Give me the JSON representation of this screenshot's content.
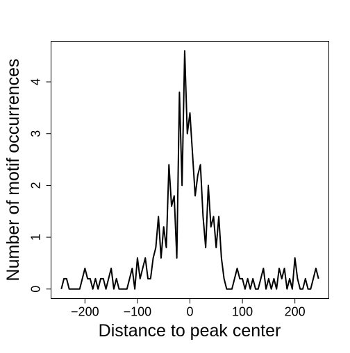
{
  "chart_data": {
    "type": "line",
    "xlabel": "Distance to peak center",
    "ylabel": "Number of motif occurrences",
    "color": "#000000",
    "x": [
      -245,
      -240,
      -235,
      -230,
      -225,
      -220,
      -215,
      -210,
      -205,
      -200,
      -195,
      -190,
      -185,
      -180,
      -175,
      -170,
      -165,
      -160,
      -155,
      -150,
      -145,
      -140,
      -135,
      -130,
      -125,
      -120,
      -115,
      -110,
      -105,
      -100,
      -95,
      -90,
      -85,
      -80,
      -75,
      -70,
      -65,
      -60,
      -55,
      -50,
      -45,
      -40,
      -35,
      -30,
      -25,
      -20,
      -15,
      -10,
      -5,
      0,
      5,
      10,
      15,
      20,
      25,
      30,
      35,
      40,
      45,
      50,
      55,
      60,
      65,
      70,
      75,
      80,
      85,
      90,
      95,
      100,
      105,
      110,
      115,
      120,
      125,
      130,
      135,
      140,
      145,
      150,
      155,
      160,
      165,
      170,
      175,
      180,
      185,
      190,
      195,
      200,
      205,
      210,
      215,
      220,
      225,
      230,
      235,
      240,
      245
    ],
    "values": [
      0,
      0.2,
      0.2,
      0,
      0,
      0,
      0,
      0,
      0.2,
      0.4,
      0.2,
      0.2,
      0,
      0.2,
      0,
      0.2,
      0.2,
      0,
      0.2,
      0.4,
      0,
      0.2,
      0,
      0,
      0,
      0,
      0.2,
      0.4,
      0,
      0.6,
      0.2,
      0.4,
      0.6,
      0.2,
      0.2,
      0.6,
      0.8,
      1.4,
      0.6,
      1.2,
      0.8,
      2.4,
      1.6,
      1.8,
      0.6,
      3.8,
      2.0,
      4.6,
      3.0,
      3.4,
      2.6,
      1.8,
      2.2,
      2.4,
      1.4,
      0.8,
      2.0,
      1.2,
      1.4,
      0.8,
      1.4,
      0.6,
      0.2,
      0,
      0,
      0,
      0.2,
      0.4,
      0.2,
      0.2,
      0,
      0.2,
      0,
      0.2,
      0,
      0,
      0.2,
      0.4,
      0,
      0.2,
      0,
      0.2,
      0,
      0.4,
      0.2,
      0.4,
      0,
      0.2,
      0,
      0.6,
      0.2,
      0,
      0,
      0.2,
      0,
      0,
      0.2,
      0.4,
      0.2
    ],
    "xlim": [
      -264.6,
      264.6
    ],
    "ylim": [
      -0.184,
      4.784
    ],
    "xticks": [
      {
        "value": -200,
        "label": "−200"
      },
      {
        "value": -100,
        "label": "−100"
      },
      0,
      100,
      200
    ],
    "yticks": [
      0,
      1,
      2,
      3,
      4
    ]
  }
}
